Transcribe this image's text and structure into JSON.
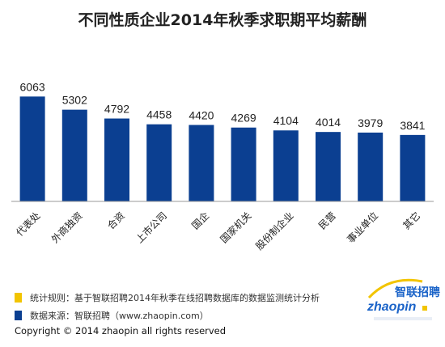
{
  "chart_data": {
    "type": "bar",
    "title": "不同性质企业2014年秋季求职期平均薪酬",
    "categories": [
      "代表处",
      "外商独资",
      "合资",
      "上市公司",
      "国企",
      "国家机关",
      "股份制企业",
      "民营",
      "事业单位",
      "其它"
    ],
    "values": [
      6063,
      5302,
      4792,
      4458,
      4420,
      4269,
      4104,
      4014,
      3979,
      3841
    ],
    "xlabel": "",
    "ylabel": "",
    "ylim": [
      0,
      6500
    ],
    "grid": false,
    "bar_color": "#0b3f91"
  },
  "legend": [
    {
      "text": "统计规则：基于智联招聘2014年秋季在线招聘数据库的数据监测统计分析",
      "color": "#f2c400"
    },
    {
      "text": "数据来源：智联招聘（www.zhaopin.com）",
      "color": "#0b3f91"
    }
  ],
  "copyright": "Copyright  ©  2014 zhaopin all rights reserved",
  "logo": {
    "brand": "智联招聘",
    "text": "zhaopin"
  }
}
